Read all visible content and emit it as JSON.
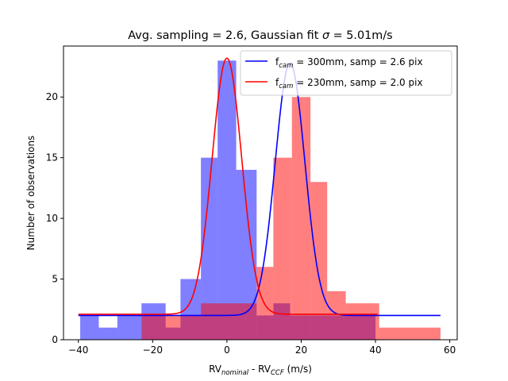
{
  "chart_data": {
    "type": "histogram+line",
    "title_prefix": "Avg. sampling = 2.6, Gaussian fit ",
    "title_sigma": "σ",
    "title_suffix": " = 5.01m/s",
    "xlabel_main": "RV",
    "xlabel_sub1": "nominal",
    "xlabel_mid": " - RV",
    "xlabel_sub2": "CCF",
    "xlabel_unit": " (m/s)",
    "ylabel": "Number of observations",
    "xlim": [
      -44,
      62
    ],
    "ylim": [
      0,
      24.2
    ],
    "xticks": [
      -40,
      -20,
      0,
      20,
      40,
      60
    ],
    "yticks": [
      0,
      5,
      10,
      15,
      20
    ],
    "histograms": [
      {
        "name": "blue",
        "color": "#0000ff",
        "alpha": 0.5,
        "bins": [
          {
            "x0": -39.5,
            "x1": -34.5,
            "count": 2
          },
          {
            "x0": -34.5,
            "x1": -29.5,
            "count": 1
          },
          {
            "x0": -29.5,
            "x1": -23.0,
            "count": 2
          },
          {
            "x0": -23.0,
            "x1": -16.5,
            "count": 3
          },
          {
            "x0": -16.5,
            "x1": -12.5,
            "count": 1
          },
          {
            "x0": -12.5,
            "x1": -7.0,
            "count": 5
          },
          {
            "x0": -7.0,
            "x1": -2.5,
            "count": 15
          },
          {
            "x0": -2.5,
            "x1": 2.5,
            "count": 23
          },
          {
            "x0": 2.5,
            "x1": 8.0,
            "count": 14
          },
          {
            "x0": 8.0,
            "x1": 12.5,
            "count": 2
          },
          {
            "x0": 12.5,
            "x1": 17.0,
            "count": 3
          },
          {
            "x0": 17.0,
            "x1": 22.5,
            "count": 2
          },
          {
            "x0": 22.5,
            "x1": 40.0,
            "count": 2
          }
        ]
      },
      {
        "name": "red",
        "color": "#ff0000",
        "alpha": 0.5,
        "bins": [
          {
            "x0": -23.0,
            "x1": -12.5,
            "count": 2
          },
          {
            "x0": -12.5,
            "x1": -12.0,
            "count": 2
          },
          {
            "x0": -12.0,
            "x1": -7.0,
            "count": 2
          },
          {
            "x0": -7.0,
            "x1": 8.0,
            "count": 3
          },
          {
            "x0": 8.0,
            "x1": 12.5,
            "count": 6
          },
          {
            "x0": 12.5,
            "x1": 17.5,
            "count": 15
          },
          {
            "x0": 17.5,
            "x1": 22.5,
            "count": 20
          },
          {
            "x0": 22.5,
            "x1": 27.0,
            "count": 13
          },
          {
            "x0": 27.0,
            "x1": 32.0,
            "count": 4
          },
          {
            "x0": 32.0,
            "x1": 41.0,
            "count": 3
          },
          {
            "x0": 41.0,
            "x1": 57.5,
            "count": 1
          }
        ]
      }
    ],
    "series": [
      {
        "name_main": "f",
        "name_sub": "cam",
        "name_rest": " = 300mm, samp = 2.6 pix",
        "color": "#0000ff",
        "baseline": 2.0,
        "amplitude": 20.8,
        "mu": 17.0,
        "sigma": 4.0,
        "x_range": [
          -40,
          57.5
        ]
      },
      {
        "name_main": "f",
        "name_sub": "cam",
        "name_rest": " = 230mm, samp = 2.0 pix",
        "color": "#ff0000",
        "baseline": 2.1,
        "amplitude": 21.1,
        "mu": 0.0,
        "sigma": 4.0,
        "x_range": [
          -40,
          40.5
        ]
      }
    ],
    "legend_loc": "upper right"
  }
}
